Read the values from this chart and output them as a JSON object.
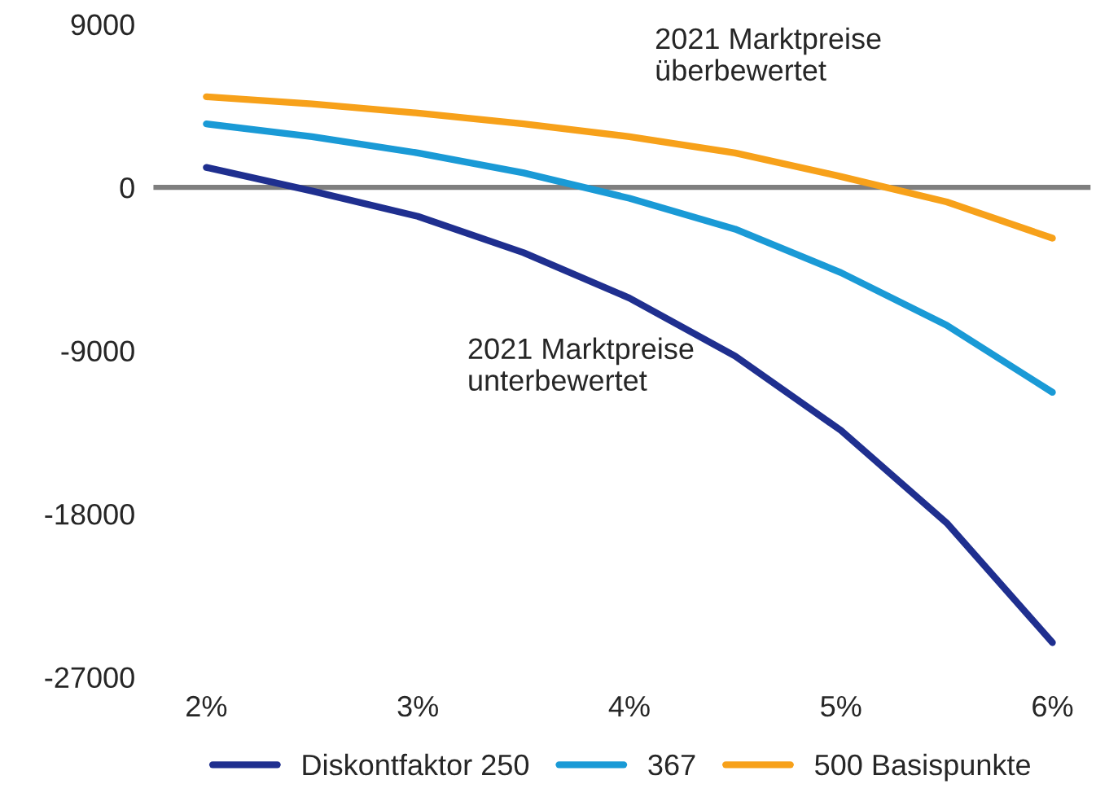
{
  "chart_data": {
    "type": "line",
    "x": [
      2,
      2.5,
      3,
      3.5,
      4,
      4.5,
      5,
      5.5,
      6
    ],
    "series": [
      {
        "name": "Diskontfaktor 250",
        "color": "#1f2f8f",
        "values": [
          1100,
          -200,
          -1600,
          -3600,
          -6100,
          -9300,
          -13400,
          -18500,
          -25100
        ]
      },
      {
        "name": "367",
        "color": "#1a9ad6",
        "values": [
          3500,
          2800,
          1900,
          800,
          -600,
          -2300,
          -4700,
          -7600,
          -11300
        ]
      },
      {
        "name": "500 Basispunkte",
        "color": "#f7a11a",
        "values": [
          5000,
          4600,
          4100,
          3500,
          2800,
          1900,
          600,
          -800,
          -2800
        ]
      }
    ],
    "xlim": [
      1.75,
      6.18
    ],
    "ylim": [
      -27000,
      9000
    ],
    "xticks": [
      {
        "value": 2,
        "label": "2%"
      },
      {
        "value": 3,
        "label": "3%"
      },
      {
        "value": 4,
        "label": "4%"
      },
      {
        "value": 5,
        "label": "5%"
      },
      {
        "value": 6,
        "label": "6%"
      }
    ],
    "yticks": [
      9000,
      0,
      -9000,
      -18000,
      -27000
    ],
    "ref_lines": [
      {
        "axis": "y",
        "value": 0,
        "color": "#7f7f7f"
      }
    ],
    "annotations": [
      "2021 Marktpreise\nüberbewertet",
      "2021 Marktpreise\nunterbewertet"
    ],
    "grid": false,
    "legend": "bottom",
    "marker": "none",
    "line_style": "solid"
  }
}
